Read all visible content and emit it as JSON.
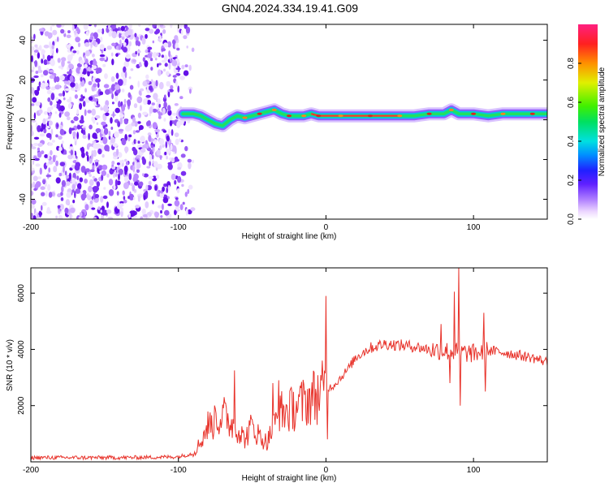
{
  "title": "GN04.2024.334.19.41.G09",
  "chart_data": [
    {
      "type": "heatmap",
      "xlabel": "Height of straight line (km)",
      "ylabel": "Frequency (Hz)",
      "xlim": [
        -200,
        150
      ],
      "ylim": [
        -50,
        48
      ],
      "xticks": [
        -200,
        -100,
        0,
        100
      ],
      "yticks": [
        -40,
        -20,
        0,
        20,
        40
      ],
      "colorbar": {
        "label": "Normalized spectral amplitude",
        "range": [
          0,
          1
        ],
        "ticks": [
          "0.0",
          "0.2",
          "0.4",
          "0.6",
          "0.8"
        ]
      },
      "noise_region": {
        "x": [
          -200,
          -90
        ],
        "freq": [
          -50,
          48
        ]
      },
      "signal_track": {
        "x": [
          -97,
          -90,
          -85,
          -80,
          -75,
          -70,
          -65,
          -60,
          -55,
          -50,
          -45,
          -40,
          -35,
          -30,
          -25,
          -20,
          -15,
          -10,
          -5,
          0,
          10,
          20,
          30,
          40,
          50,
          60,
          70,
          80,
          85,
          90,
          100,
          110,
          120,
          130,
          140,
          150
        ],
        "freq": [
          3,
          3,
          2,
          0,
          -2,
          -3,
          0,
          2,
          1,
          2,
          3,
          4,
          5,
          3,
          2,
          2,
          2,
          3,
          2,
          2,
          2,
          2,
          2,
          2,
          2,
          2,
          3,
          3,
          5,
          3,
          3,
          2,
          3,
          3,
          3,
          3
        ]
      },
      "grid": false
    },
    {
      "type": "line",
      "xlabel": "Height of straight line (km)",
      "ylabel": "SNR (10 * v/v)",
      "xlim": [
        -200,
        150
      ],
      "ylim": [
        0,
        6900
      ],
      "xticks": [
        -200,
        -100,
        0,
        100
      ],
      "yticks": [
        2000,
        4000,
        6000
      ],
      "color": "#e8332b",
      "x": [
        -200,
        -180,
        -160,
        -140,
        -120,
        -100,
        -90,
        -85,
        -80,
        -75,
        -70,
        -65,
        -60,
        -55,
        -50,
        -45,
        -40,
        -35,
        -30,
        -25,
        -20,
        -15,
        -10,
        -5,
        0,
        5,
        10,
        15,
        20,
        25,
        30,
        40,
        50,
        60,
        70,
        80,
        90,
        100,
        110,
        120,
        130,
        140,
        150
      ],
      "y": [
        150,
        150,
        150,
        150,
        160,
        180,
        300,
        700,
        1300,
        1400,
        1700,
        1400,
        1200,
        800,
        1300,
        900,
        700,
        1300,
        1800,
        1800,
        2000,
        2100,
        2300,
        2400,
        2600,
        2700,
        3000,
        3300,
        3700,
        3900,
        4050,
        4200,
        4150,
        4100,
        4000,
        3950,
        3900,
        3850,
        3950,
        3900,
        3800,
        3700,
        3550
      ],
      "spikes": [
        {
          "x": -75,
          "y": 1900
        },
        {
          "x": -62,
          "y": 3250
        },
        {
          "x": -36,
          "y": 2800
        },
        {
          "x": -32,
          "y": 2900
        },
        {
          "x": 0,
          "y": 5900
        },
        {
          "x": 1,
          "y": 800
        },
        {
          "x": 78,
          "y": 4900
        },
        {
          "x": 84,
          "y": 2800
        },
        {
          "x": 87,
          "y": 6050
        },
        {
          "x": 90,
          "y": 6900
        },
        {
          "x": 91,
          "y": 2000
        },
        {
          "x": 107,
          "y": 5300
        },
        {
          "x": 108,
          "y": 2500
        }
      ],
      "grid": false
    }
  ]
}
